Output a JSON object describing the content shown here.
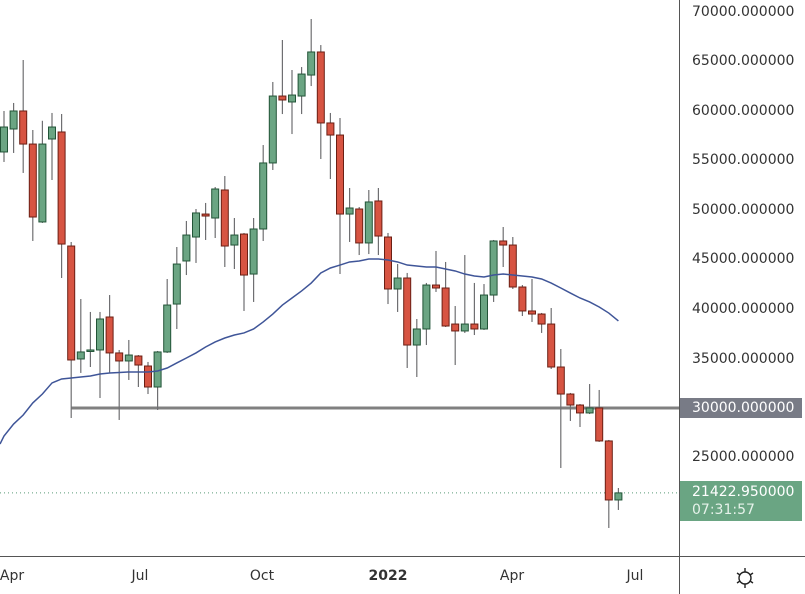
{
  "chart_data": {
    "type": "candlestick",
    "interval": "weekly",
    "ylim": [
      15050,
      71210
    ],
    "grid": false,
    "price_axis_ticks": [
      70000,
      65000,
      60000,
      55000,
      50000,
      45000,
      40000,
      35000,
      30000,
      25000
    ],
    "price_axis_labels": [
      "70000.000000",
      "65000.000000",
      "60000.000000",
      "55000.000000",
      "50000.000000",
      "45000.000000",
      "40000.000000",
      "35000.000000",
      "30000.000000",
      "25000.000000"
    ],
    "time_axis_labels": [
      "Apr",
      "Jul",
      "Oct",
      "2022",
      "Apr",
      "Jul"
    ],
    "ohlc_fields": [
      "open",
      "high",
      "low",
      "close"
    ],
    "candles": [
      [
        55860,
        60000,
        54850,
        58380
      ],
      [
        58180,
        60810,
        55760,
        60000
      ],
      [
        60000,
        65150,
        53740,
        56660
      ],
      [
        56660,
        58080,
        46870,
        49290
      ],
      [
        48790,
        59010,
        48690,
        56660
      ],
      [
        57170,
        59800,
        53030,
        58380
      ],
      [
        57880,
        59690,
        43130,
        46560
      ],
      [
        46360,
        46770,
        28990,
        34850
      ],
      [
        34950,
        41010,
        33540,
        35660
      ],
      [
        35760,
        39700,
        34140,
        35860
      ],
      [
        35860,
        39700,
        31010,
        38990
      ],
      [
        39190,
        41410,
        33540,
        35560
      ],
      [
        35560,
        35860,
        28790,
        34750
      ],
      [
        34750,
        36870,
        32830,
        35350
      ],
      [
        35250,
        35350,
        32120,
        34340
      ],
      [
        34240,
        34650,
        31410,
        32120
      ],
      [
        32120,
        35760,
        29800,
        35660
      ],
      [
        35660,
        43030,
        35560,
        40400
      ],
      [
        40500,
        46260,
        37980,
        44540
      ],
      [
        44850,
        48890,
        43430,
        47470
      ],
      [
        47270,
        50100,
        44650,
        49700
      ],
      [
        49590,
        50710,
        46970,
        49390
      ],
      [
        49190,
        52320,
        47170,
        52120
      ],
      [
        52020,
        53430,
        44240,
        46360
      ],
      [
        46460,
        49190,
        44040,
        47470
      ],
      [
        47570,
        47680,
        39800,
        43430
      ],
      [
        43530,
        49190,
        40710,
        48080
      ],
      [
        48080,
        56560,
        46870,
        54750
      ],
      [
        54750,
        62930,
        54040,
        61510
      ],
      [
        61510,
        67170,
        59690,
        61110
      ],
      [
        60910,
        64140,
        57670,
        61610
      ],
      [
        61510,
        64440,
        59690,
        63730
      ],
      [
        63630,
        69290,
        62520,
        65960
      ],
      [
        65960,
        66660,
        55150,
        58790
      ],
      [
        58790,
        59800,
        53130,
        57570
      ],
      [
        57570,
        59290,
        43530,
        49590
      ],
      [
        49590,
        52220,
        46770,
        50200
      ],
      [
        50100,
        50300,
        45450,
        46670
      ],
      [
        46670,
        52020,
        45550,
        50810
      ],
      [
        50910,
        52220,
        45450,
        47370
      ],
      [
        47270,
        47680,
        40500,
        42020
      ],
      [
        42020,
        44540,
        39700,
        43130
      ],
      [
        43130,
        43640,
        34040,
        36360
      ],
      [
        36360,
        38990,
        33130,
        37980
      ],
      [
        37980,
        42630,
        36360,
        42420
      ],
      [
        42420,
        45860,
        41720,
        42120
      ],
      [
        42120,
        44750,
        38180,
        38280
      ],
      [
        38480,
        40300,
        34340,
        37780
      ],
      [
        37780,
        45450,
        37580,
        38480
      ],
      [
        38480,
        42630,
        37370,
        37980
      ],
      [
        37980,
        42520,
        37880,
        41410
      ],
      [
        41410,
        46970,
        40710,
        46870
      ],
      [
        46870,
        48280,
        44240,
        46460
      ],
      [
        46460,
        47270,
        42020,
        42220
      ],
      [
        42220,
        42420,
        39290,
        39800
      ],
      [
        39800,
        43030,
        38690,
        39490
      ],
      [
        39490,
        39600,
        37580,
        38480
      ],
      [
        38480,
        40100,
        33940,
        34140
      ],
      [
        34140,
        35960,
        23940,
        31410
      ],
      [
        31410,
        31520,
        28690,
        30300
      ],
      [
        30300,
        30400,
        28080,
        29500
      ],
      [
        29500,
        32420,
        29390,
        30000
      ],
      [
        30000,
        31820,
        26570,
        26670
      ],
      [
        26670,
        26770,
        17880,
        20710
      ],
      [
        20710,
        21920,
        19700,
        21423
      ]
    ],
    "moving_average": [
      27170,
      28380,
      29290,
      30510,
      31410,
      32530,
      32930,
      33030,
      33130,
      33230,
      33430,
      33540,
      33590,
      33640,
      33640,
      33640,
      33740,
      34040,
      34550,
      35050,
      35560,
      36160,
      36670,
      37070,
      37370,
      37580,
      37980,
      38690,
      39490,
      40400,
      41110,
      41820,
      42620,
      43640,
      44140,
      44440,
      44750,
      44850,
      45050,
      45050,
      44950,
      44750,
      44440,
      44340,
      44240,
      44240,
      44040,
      43840,
      43530,
      43330,
      43230,
      43430,
      43530,
      43430,
      43330,
      43230,
      43030,
      42620,
      42120,
      41610,
      41110,
      40710,
      40200,
      39590,
      38790
    ],
    "horizontal_level": {
      "value": 30000,
      "label": "30000.000000"
    },
    "last_price": {
      "value": 21422.95,
      "label": "21422.950000",
      "countdown": "07:31:57"
    },
    "colors": {
      "up": "#6ba583",
      "up_border": "#225437",
      "down": "#d75442",
      "down_border": "#6b1f14",
      "wick": "#6f6f72",
      "ma": "#3f5598",
      "level": "#808080",
      "level_tag": "#787b86",
      "last_tag": "#6aa583"
    }
  },
  "icons": {
    "settings": "gear-icon"
  }
}
